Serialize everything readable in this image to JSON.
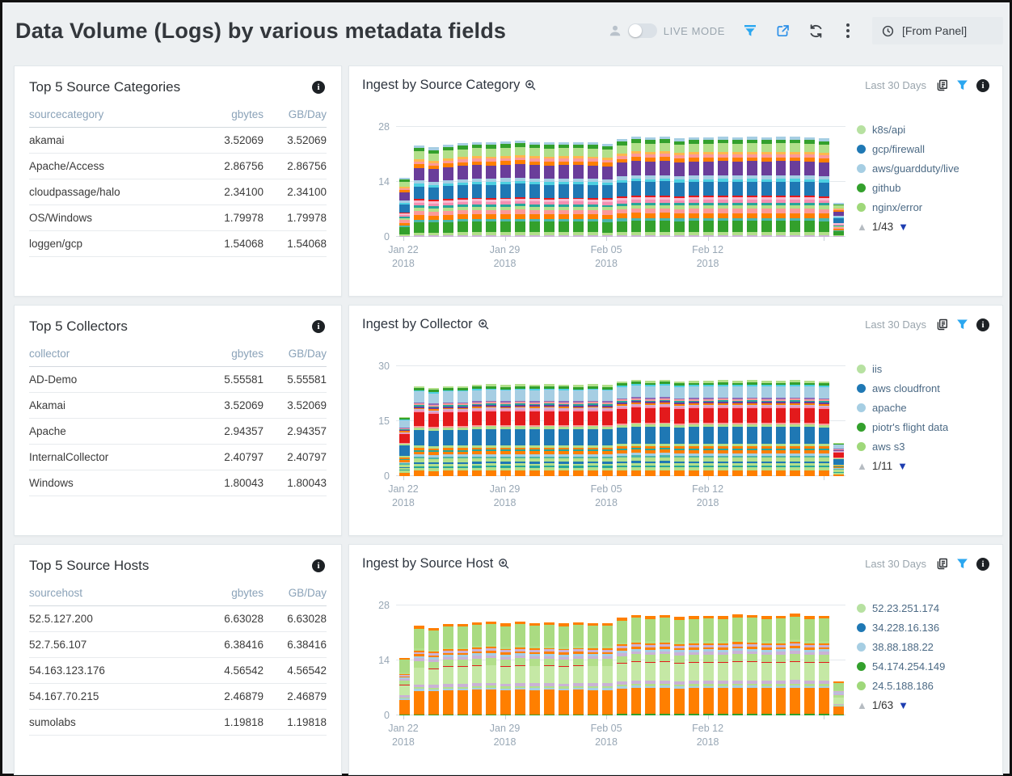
{
  "header": {
    "title": "Data Volume (Logs) by various metadata fields",
    "live_mode_label": "LIVE MODE",
    "time_range_label": "[From Panel]"
  },
  "accent_colors": {
    "filter_blue": "#2ba7f0",
    "share_blue": "#2b8fe8",
    "pager_blue": "#1d3db0"
  },
  "tables": [
    {
      "title": "Top 5 Source Categories",
      "columns": [
        "sourcecategory",
        "gbytes",
        "GB/Day"
      ],
      "rows": [
        [
          "akamai",
          "3.52069",
          "3.52069"
        ],
        [
          "Apache/Access",
          "2.86756",
          "2.86756"
        ],
        [
          "cloudpassage/halo",
          "2.34100",
          "2.34100"
        ],
        [
          "OS/Windows",
          "1.79978",
          "1.79978"
        ],
        [
          "loggen/gcp",
          "1.54068",
          "1.54068"
        ]
      ]
    },
    {
      "title": "Top 5 Collectors",
      "columns": [
        "collector",
        "gbytes",
        "GB/Day"
      ],
      "rows": [
        [
          "AD-Demo",
          "5.55581",
          "5.55581"
        ],
        [
          "Akamai",
          "3.52069",
          "3.52069"
        ],
        [
          "Apache",
          "2.94357",
          "2.94357"
        ],
        [
          "InternalCollector",
          "2.40797",
          "2.40797"
        ],
        [
          "Windows",
          "1.80043",
          "1.80043"
        ]
      ]
    },
    {
      "title": "Top 5 Source Hosts",
      "columns": [
        "sourcehost",
        "gbytes",
        "GB/Day"
      ],
      "rows": [
        [
          "52.5.127.200",
          "6.63028",
          "6.63028"
        ],
        [
          "52.7.56.107",
          "6.38416",
          "6.38416"
        ],
        [
          "54.163.123.176",
          "4.56542",
          "4.56542"
        ],
        [
          "54.167.70.215",
          "2.46879",
          "2.46879"
        ],
        [
          "sumolabs",
          "1.19818",
          "1.19818"
        ]
      ]
    }
  ],
  "chart_data": [
    {
      "type": "stacked-bar",
      "title": "Ingest by Source Category",
      "time_range": "Last 30 Days",
      "ymax": 28,
      "yticks": [
        0,
        14,
        28
      ],
      "xticks": [
        {
          "i": 0,
          "line1": "Jan 22",
          "line2": "2018"
        },
        {
          "i": 7,
          "line1": "Jan 29",
          "line2": "2018"
        },
        {
          "i": 14,
          "line1": "Feb 05",
          "line2": "2018"
        },
        {
          "i": 21,
          "line1": "Feb 12",
          "line2": "2018"
        }
      ],
      "totals": [
        15.0,
        23.3,
        22.8,
        23.5,
        23.9,
        24.2,
        24.1,
        24.3,
        24.5,
        24.2,
        24.1,
        24.2,
        24.2,
        24.1,
        23.8,
        25.0,
        25.6,
        25.4,
        25.6,
        25.1,
        25.4,
        25.4,
        25.5,
        25.4,
        25.5,
        25.4,
        25.5,
        25.5,
        25.4,
        25.1,
        8.6
      ],
      "segments": [
        {
          "c": "#cab2d6",
          "w": 0.35
        },
        {
          "c": "#b2df8a",
          "w": 0.5
        },
        {
          "c": "#33a02c",
          "w": 2.0
        },
        {
          "c": "#4db6ac",
          "w": 0.5
        },
        {
          "c": "#ff7f00",
          "w": 0.9
        },
        {
          "c": "#fb9a99",
          "w": 0.8
        },
        {
          "c": "#b2df8a",
          "w": 0.6
        },
        {
          "c": "#26a69a",
          "w": 0.45
        },
        {
          "c": "#f48fb1",
          "w": 0.55
        },
        {
          "c": "#f8bbd0",
          "w": 0.45
        },
        {
          "c": "#e31a1c",
          "w": 0.25
        },
        {
          "c": "#1f78b4",
          "w": 2.5
        },
        {
          "c": "#4dd0e1",
          "w": 0.5
        },
        {
          "c": "#a6cee3",
          "w": 0.65
        },
        {
          "c": "#6a3d9a",
          "w": 2.5
        },
        {
          "c": "#ff7f00",
          "w": 0.7
        },
        {
          "c": "#fb9a99",
          "w": 0.55
        },
        {
          "c": "#ffb74d",
          "w": 0.45
        },
        {
          "c": "#b2df8a",
          "w": 1.5
        },
        {
          "c": "#33a02c",
          "w": 0.65
        },
        {
          "c": "#a6cee3",
          "w": 0.5
        }
      ],
      "legend": [
        {
          "color": "#b7e1a1",
          "label": "k8s/api"
        },
        {
          "color": "#1f78b4",
          "label": "gcp/firewall"
        },
        {
          "color": "#a6cee3",
          "label": "aws/guardduty/live"
        },
        {
          "color": "#33a02c",
          "label": "github"
        },
        {
          "color": "#9fd87a",
          "label": "nginx/error"
        }
      ],
      "pager": "1/43"
    },
    {
      "type": "stacked-bar",
      "title": "Ingest by Collector",
      "time_range": "Last 30 Days",
      "ymax": 30,
      "yticks": [
        0,
        15,
        30
      ],
      "xticks": [
        {
          "i": 0,
          "line1": "Jan 22",
          "line2": "2018"
        },
        {
          "i": 7,
          "line1": "Jan 29",
          "line2": "2018"
        },
        {
          "i": 14,
          "line1": "Feb 05",
          "line2": "2018"
        },
        {
          "i": 21,
          "line1": "Feb 12",
          "line2": "2018"
        }
      ],
      "totals": [
        16.2,
        24.6,
        24.1,
        24.6,
        24.6,
        25.0,
        25.1,
        24.9,
        25.1,
        25.0,
        25.1,
        25.0,
        24.9,
        25.1,
        24.9,
        25.9,
        26.4,
        26.1,
        26.4,
        25.9,
        26.1,
        26.1,
        26.2,
        26.1,
        26.2,
        26.1,
        26.1,
        26.2,
        26.1,
        25.9,
        9.1
      ],
      "segments": [
        {
          "c": "#ff7f00",
          "w": 1.2
        },
        {
          "c": "#b2df8a",
          "w": 0.7
        },
        {
          "c": "#26a69a",
          "w": 0.4
        },
        {
          "c": "#b2df8a",
          "w": 0.5
        },
        {
          "c": "#1f78b4",
          "w": 0.4
        },
        {
          "c": "#b2df8a",
          "w": 0.8
        },
        {
          "c": "#4db6ac",
          "w": 0.4
        },
        {
          "c": "#a6cee3",
          "w": 0.5
        },
        {
          "c": "#ff7f00",
          "w": 0.7
        },
        {
          "c": "#26a69a",
          "w": 0.35
        },
        {
          "c": "#ff7f00",
          "w": 0.45
        },
        {
          "c": "#b2df8a",
          "w": 0.55
        },
        {
          "c": "#1f78b4",
          "w": 3.6
        },
        {
          "c": "#b2df8a",
          "w": 0.55
        },
        {
          "c": "#fb9a99",
          "w": 0.3
        },
        {
          "c": "#e31a1c",
          "w": 3.1
        },
        {
          "c": "#f48fb1",
          "w": 0.35
        },
        {
          "c": "#cab2d6",
          "w": 0.4
        },
        {
          "c": "#ff7f00",
          "w": 0.3
        },
        {
          "c": "#6a3d9a",
          "w": 0.35
        },
        {
          "c": "#26a69a",
          "w": 0.3
        },
        {
          "c": "#fb9a99",
          "w": 0.35
        },
        {
          "c": "#8e6bb8",
          "w": 0.3
        },
        {
          "c": "#a6cee3",
          "w": 2.4
        },
        {
          "c": "#4dd0e1",
          "w": 0.3
        },
        {
          "c": "#33a02c",
          "w": 0.5
        },
        {
          "c": "#b2df8a",
          "w": 0.45
        }
      ],
      "legend": [
        {
          "color": "#b7e1a1",
          "label": "iis"
        },
        {
          "color": "#1f78b4",
          "label": "aws cloudfront"
        },
        {
          "color": "#a6cee3",
          "label": "apache"
        },
        {
          "color": "#33a02c",
          "label": "piotr's flight data"
        },
        {
          "color": "#9fd87a",
          "label": "aws s3"
        }
      ],
      "pager": "1/11"
    },
    {
      "type": "stacked-bar",
      "title": "Ingest by Source Host",
      "time_range": "Last 30 Days",
      "ymax": 28,
      "yticks": [
        0,
        14,
        28
      ],
      "xticks": [
        {
          "i": 0,
          "line1": "Jan 22",
          "line2": "2018"
        },
        {
          "i": 7,
          "line1": "Jan 29",
          "line2": "2018"
        },
        {
          "i": 14,
          "line1": "Feb 05",
          "line2": "2018"
        },
        {
          "i": 21,
          "line1": "Feb 12",
          "line2": "2018"
        }
      ],
      "totals": [
        14.6,
        22.8,
        22.3,
        23.3,
        23.3,
        23.8,
        24.0,
        23.4,
        23.9,
        23.6,
        23.7,
        23.4,
        23.7,
        23.6,
        23.6,
        24.9,
        25.6,
        25.3,
        25.6,
        25.1,
        25.3,
        25.4,
        25.3,
        25.7,
        25.6,
        25.3,
        25.4,
        25.9,
        25.3,
        25.4,
        8.6
      ],
      "segments": [
        {
          "c": "#33a02c",
          "w": 0.3
        },
        {
          "c": "#ff7f00",
          "w": 6.2
        },
        {
          "c": "#a6cee3",
          "w": 0.5
        },
        {
          "c": "#b2df8a",
          "w": 0.45
        },
        {
          "c": "#cab2d6",
          "w": 0.8
        },
        {
          "c": "#c5e8a5",
          "w": 4.3
        },
        {
          "c": "#e31a1c",
          "w": 0.18
        },
        {
          "c": "#b2df8a",
          "w": 1.7
        },
        {
          "c": "#cab2d6",
          "w": 0.7
        },
        {
          "c": "#a6cee3",
          "w": 0.6
        },
        {
          "c": "#ff7f00",
          "w": 0.5
        },
        {
          "c": "#cab2d6",
          "w": 0.6
        },
        {
          "c": "#ff7f00",
          "w": 0.4
        },
        {
          "c": "#b2df8a",
          "w": 0.5
        },
        {
          "c": "#aadb82",
          "w": 5.3
        },
        {
          "c": "#ff7f00",
          "w": 0.7
        }
      ],
      "legend": [
        {
          "color": "#b7e1a1",
          "label": "52.23.251.174"
        },
        {
          "color": "#1f78b4",
          "label": "34.228.16.136"
        },
        {
          "color": "#a6cee3",
          "label": "38.88.188.22"
        },
        {
          "color": "#33a02c",
          "label": "54.174.254.149"
        },
        {
          "color": "#9fd87a",
          "label": "24.5.188.186"
        }
      ],
      "pager": "1/63"
    }
  ]
}
